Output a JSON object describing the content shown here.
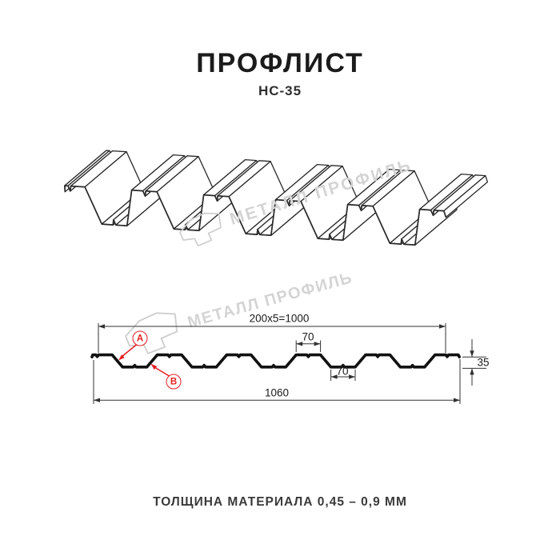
{
  "header": {
    "title": "ПРОФЛИСТ",
    "subtitle": "НС-35"
  },
  "watermark": {
    "text": "МЕТАЛЛ ПРОФИЛЬ",
    "color": "#d4d4d4"
  },
  "colors": {
    "accent_red": "#e31e24",
    "line_dark": "#2a2a2a",
    "line_black": "#111111",
    "dim": "#333333",
    "watermark_gray": "#cfcfcf"
  },
  "cross_section": {
    "dims": {
      "top_total": "200x5=1000",
      "rib_top_width": "70",
      "rib_bottom_width": "70",
      "overall_width": "1060",
      "height": "35"
    },
    "callouts": {
      "a": "A",
      "b": "B"
    }
  },
  "profile_spec": {
    "periods": 5,
    "period_mm": 200,
    "coverage_mm": 1000,
    "overall_mm": 1060,
    "height_mm": 35,
    "flange_mm": 70
  },
  "footer": {
    "thickness_note": "ТОЛЩИНА МАТЕРИАЛА 0,45 – 0,9 ММ"
  }
}
